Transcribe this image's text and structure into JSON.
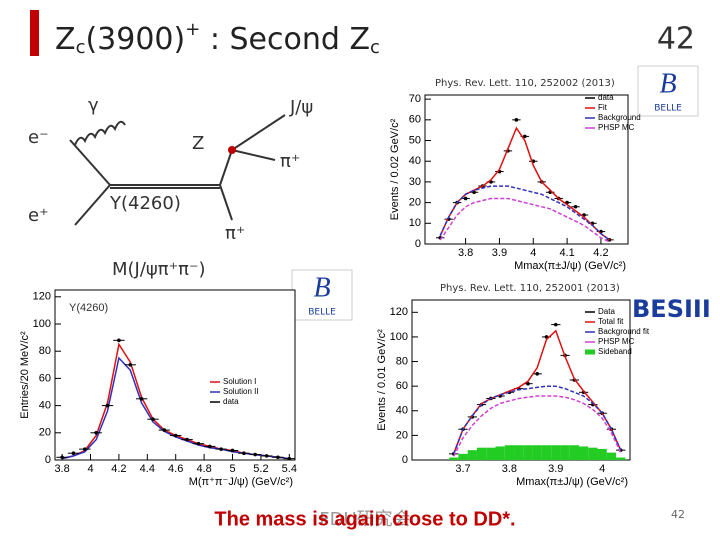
{
  "header": {
    "title_parts": [
      "Z",
      "c",
      "(3900)",
      "+",
      " : Second Z",
      "c"
    ],
    "page_number": "42"
  },
  "diagram": {
    "gamma": "γ",
    "e_minus": "e⁻",
    "e_plus": "e⁺",
    "z": "Z",
    "jpsi": "J/ψ",
    "pi1": "π⁺",
    "pi2": "π⁺",
    "y4260": "Y(4260)",
    "mass": "M(J/ψπ⁺π⁻)"
  },
  "citations": [
    "Phys. Rev. Lett. 110, 252002 (2013)",
    "Phys. Rev. Lett. 110, 252001 (2013)"
  ],
  "logos": [
    "BELLE",
    "BELLE",
    "BESIII"
  ],
  "footer": {
    "text": "The mass is again close to DD*.",
    "watermark": "FDU研究会",
    "page_number": "42"
  },
  "chart_data": [
    {
      "type": "scatter",
      "xlabel": "Mmax(π±J/ψ) (GeV/c²)",
      "ylabel": "Events / 0.02 GeV/c²",
      "x": [
        3.725,
        3.75,
        3.775,
        3.8,
        3.825,
        3.85,
        3.875,
        3.9,
        3.925,
        3.95,
        3.975,
        4.0,
        4.025,
        4.05,
        4.075,
        4.1,
        4.125,
        4.15,
        4.175,
        4.2,
        4.225
      ],
      "series": [
        {
          "name": "data",
          "color": "#000000",
          "mark": "points",
          "values": [
            3,
            12,
            20,
            22,
            25,
            28,
            30,
            35,
            45,
            60,
            52,
            40,
            30,
            25,
            22,
            20,
            18,
            14,
            10,
            6,
            2
          ]
        },
        {
          "name": "Fit",
          "color": "#e01010",
          "mark": "line",
          "values": [
            4,
            13,
            20,
            24,
            26,
            28,
            31,
            36,
            46,
            56,
            50,
            38,
            30,
            26,
            22,
            19,
            16,
            13,
            9,
            5,
            2
          ]
        },
        {
          "name": "Background",
          "color": "#3030c0",
          "mark": "line",
          "values": [
            4,
            13,
            20,
            24,
            26,
            27,
            28,
            28,
            28,
            27,
            26,
            25,
            24,
            22,
            20,
            18,
            15,
            12,
            9,
            5,
            2
          ]
        },
        {
          "name": "PHSP MC",
          "color": "#d040d0",
          "mark": "line",
          "values": [
            2,
            8,
            14,
            18,
            20,
            21,
            22,
            22,
            22,
            21,
            20,
            19,
            18,
            17,
            15,
            13,
            11,
            9,
            6,
            3,
            1
          ]
        }
      ],
      "xlim": [
        3.68,
        4.28
      ],
      "ylim": [
        0,
        72
      ],
      "xticks": [
        3.8,
        3.9,
        4,
        4.1,
        4.2
      ],
      "yticks": [
        0,
        10,
        20,
        30,
        40,
        50,
        60,
        70
      ]
    },
    {
      "type": "scatter",
      "xlabel": "Mmax(π±J/ψ) (GeV/c²)",
      "ylabel": "Events / 0.01 GeV/c²",
      "x": [
        3.68,
        3.7,
        3.72,
        3.74,
        3.76,
        3.78,
        3.8,
        3.82,
        3.84,
        3.86,
        3.88,
        3.9,
        3.92,
        3.94,
        3.96,
        3.98,
        4.0,
        4.02,
        4.04
      ],
      "series": [
        {
          "name": "Data",
          "color": "#000000",
          "mark": "points",
          "values": [
            5,
            25,
            35,
            45,
            50,
            52,
            55,
            58,
            62,
            70,
            100,
            110,
            85,
            65,
            55,
            45,
            38,
            25,
            8
          ]
        },
        {
          "name": "Total fit",
          "color": "#e01010",
          "mark": "line",
          "values": [
            5,
            25,
            36,
            46,
            50,
            53,
            56,
            59,
            64,
            75,
            98,
            105,
            84,
            66,
            56,
            47,
            38,
            25,
            8
          ]
        },
        {
          "name": "Background fit",
          "color": "#3030c0",
          "mark": "line",
          "values": [
            5,
            25,
            36,
            45,
            50,
            53,
            55,
            57,
            58,
            59,
            60,
            60,
            58,
            55,
            52,
            46,
            38,
            25,
            8
          ]
        },
        {
          "name": "PHSP MC",
          "color": "#d040d0",
          "mark": "line",
          "values": [
            3,
            18,
            28,
            36,
            42,
            46,
            48,
            50,
            51,
            52,
            52,
            52,
            51,
            49,
            46,
            41,
            34,
            22,
            6
          ]
        },
        {
          "name": "Sideband",
          "color": "#22cc22",
          "mark": "bars",
          "values": [
            2,
            5,
            8,
            10,
            10,
            11,
            12,
            12,
            12,
            12,
            12,
            12,
            12,
            12,
            11,
            10,
            9,
            6,
            2
          ]
        }
      ],
      "xlim": [
        3.59,
        4.06
      ],
      "ylim": [
        0,
        130
      ],
      "xticks": [
        3.7,
        3.8,
        3.9,
        4
      ],
      "yticks": [
        0,
        20,
        40,
        60,
        80,
        100,
        120
      ]
    },
    {
      "type": "scatter",
      "xlabel": "M(π⁺π⁻J/ψ) (GeV/c²)",
      "ylabel": "Entries/20 MeV/c²",
      "annotation": "Y(4260)",
      "x": [
        3.8,
        3.88,
        3.96,
        4.04,
        4.12,
        4.2,
        4.28,
        4.36,
        4.44,
        4.52,
        4.6,
        4.68,
        4.76,
        4.84,
        4.92,
        5.0,
        5.08,
        5.16,
        5.24,
        5.32,
        5.4
      ],
      "series": [
        {
          "name": "Solution I",
          "color": "#e01010",
          "mark": "line",
          "values": [
            1,
            3,
            7,
            18,
            42,
            85,
            72,
            46,
            30,
            22,
            18,
            15,
            12,
            10,
            8,
            7,
            5,
            4,
            3,
            2,
            1
          ]
        },
        {
          "name": "Solution II",
          "color": "#3030c0",
          "mark": "line",
          "values": [
            1,
            3,
            6,
            15,
            36,
            75,
            66,
            42,
            28,
            21,
            17,
            14,
            11,
            9,
            8,
            6,
            5,
            4,
            3,
            2,
            1
          ]
        },
        {
          "name": "data",
          "color": "#000000",
          "mark": "points",
          "values": [
            2,
            5,
            8,
            20,
            40,
            88,
            70,
            45,
            30,
            22,
            18,
            15,
            12,
            10,
            8,
            7,
            5,
            4,
            3,
            2,
            1
          ]
        }
      ],
      "xlim": [
        3.75,
        5.44
      ],
      "ylim": [
        0,
        125
      ],
      "xticks": [
        3.8,
        4,
        4.2,
        4.4,
        4.6,
        4.8,
        5,
        5.2,
        5.4
      ],
      "yticks": [
        0,
        20,
        40,
        60,
        80,
        100,
        120
      ]
    }
  ]
}
